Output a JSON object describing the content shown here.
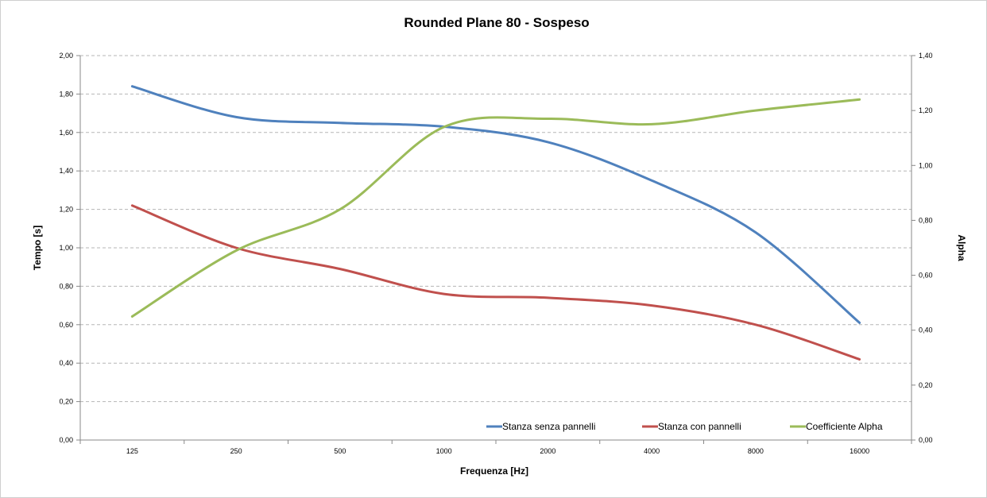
{
  "chart_data": {
    "type": "line",
    "title": "Rounded Plane 80 - Sospeso",
    "xlabel": "Frequenza [Hz]",
    "ylabel": "Tempo [s]",
    "y2label": "Alpha",
    "categories": [
      "125",
      "250",
      "500",
      "1000",
      "2000",
      "4000",
      "8000",
      "16000"
    ],
    "ylim": [
      0,
      2.0
    ],
    "y2lim": [
      0,
      1.4
    ],
    "yticks": [
      "0,00",
      "0,20",
      "0,40",
      "0,60",
      "0,80",
      "1,00",
      "1,20",
      "1,40",
      "1,60",
      "1,80",
      "2,00"
    ],
    "y2ticks": [
      "0,00",
      "0,20",
      "0,40",
      "0,60",
      "0,80",
      "1,00",
      "1,20",
      "1,40"
    ],
    "grid": true,
    "legend_position": "bottom-right",
    "series": [
      {
        "name": "Stanza senza pannelli",
        "axis": "left",
        "color": "#4f81bd",
        "values": [
          1.84,
          1.68,
          1.65,
          1.63,
          1.55,
          1.35,
          1.08,
          0.61
        ]
      },
      {
        "name": "Stanza con pannelli",
        "axis": "left",
        "color": "#c0504d",
        "values": [
          1.22,
          1.0,
          0.89,
          0.76,
          0.74,
          0.7,
          0.6,
          0.42
        ]
      },
      {
        "name": "Coefficiente Alpha",
        "axis": "right",
        "color": "#9bbb59",
        "values": [
          0.45,
          0.69,
          0.84,
          1.14,
          1.17,
          1.15,
          1.2,
          1.24
        ]
      }
    ]
  }
}
